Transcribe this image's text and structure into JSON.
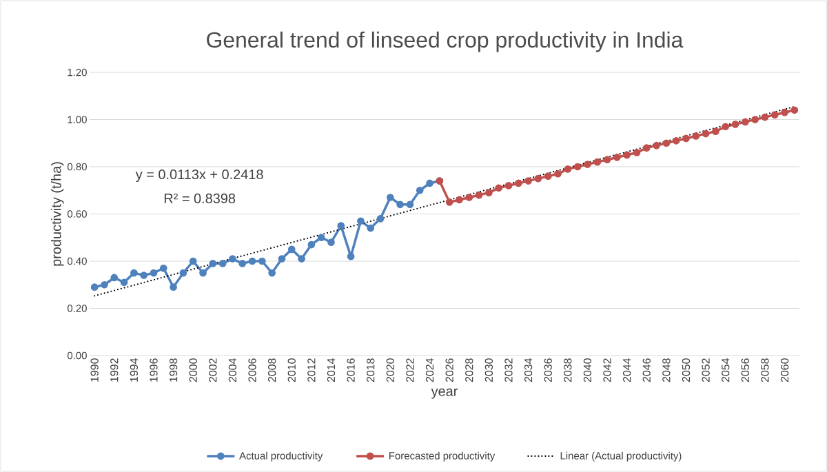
{
  "chart_data": {
    "type": "line",
    "title": "General trend of linseed crop productivity in India",
    "xlabel": "year",
    "ylabel": "productivity (t/ha)",
    "annotations": [
      "y = 0.0113x + 0.2418",
      "R² = 0.8398"
    ],
    "xlim": [
      1989.5,
      2061.5
    ],
    "xticks": [
      1990,
      1992,
      1994,
      1996,
      1998,
      2000,
      2002,
      2004,
      2006,
      2008,
      2010,
      2012,
      2014,
      2016,
      2018,
      2020,
      2022,
      2024,
      2026,
      2028,
      2030,
      2032,
      2034,
      2036,
      2038,
      2040,
      2042,
      2044,
      2046,
      2048,
      2050,
      2052,
      2054,
      2056,
      2058,
      2060
    ],
    "ylim": [
      0,
      1.2
    ],
    "yticks": [
      {
        "value": 0,
        "label": "0.00"
      },
      {
        "value": 0.2,
        "label": "0.20"
      },
      {
        "value": 0.4,
        "label": "0.40"
      },
      {
        "value": 0.6,
        "label": "0.60"
      },
      {
        "value": 0.8,
        "label": "0.80"
      },
      {
        "value": 1.0,
        "label": "1.00"
      },
      {
        "value": 1.2,
        "label": "1.20"
      }
    ],
    "grid": "y",
    "legend": "bottom",
    "marker": "circle",
    "line_style": "solid",
    "series": [
      {
        "name": "Actual productivity",
        "color": "#4f81bd",
        "x": [
          1990,
          1991,
          1992,
          1993,
          1994,
          1995,
          1996,
          1997,
          1998,
          1999,
          2000,
          2001,
          2002,
          2003,
          2004,
          2005,
          2006,
          2007,
          2008,
          2009,
          2010,
          2011,
          2012,
          2013,
          2014,
          2015,
          2016,
          2017,
          2018,
          2019,
          2020,
          2021,
          2022,
          2023,
          2024,
          2025
        ],
        "values": [
          0.29,
          0.3,
          0.33,
          0.31,
          0.35,
          0.34,
          0.35,
          0.37,
          0.29,
          0.35,
          0.4,
          0.35,
          0.39,
          0.39,
          0.41,
          0.39,
          0.4,
          0.4,
          0.35,
          0.41,
          0.45,
          0.41,
          0.47,
          0.5,
          0.48,
          0.55,
          0.42,
          0.57,
          0.54,
          0.58,
          0.67,
          0.64,
          0.64,
          0.7,
          0.73,
          0.74
        ]
      },
      {
        "name": "Forecasted productivity",
        "color": "#c0504d",
        "x": [
          2025,
          2026,
          2027,
          2028,
          2029,
          2030,
          2031,
          2032,
          2033,
          2034,
          2035,
          2036,
          2037,
          2038,
          2039,
          2040,
          2041,
          2042,
          2043,
          2044,
          2045,
          2046,
          2047,
          2048,
          2049,
          2050,
          2051,
          2052,
          2053,
          2054,
          2055,
          2056,
          2057,
          2058,
          2059,
          2060,
          2061
        ],
        "values": [
          0.74,
          0.65,
          0.66,
          0.67,
          0.68,
          0.69,
          0.71,
          0.72,
          0.73,
          0.74,
          0.75,
          0.76,
          0.77,
          0.79,
          0.8,
          0.81,
          0.82,
          0.83,
          0.84,
          0.85,
          0.86,
          0.88,
          0.89,
          0.9,
          0.91,
          0.92,
          0.93,
          0.94,
          0.95,
          0.97,
          0.98,
          0.99,
          1.0,
          1.01,
          1.02,
          1.03,
          1.04
        ]
      },
      {
        "name": "Linear (Actual productivity)",
        "color": "#000000",
        "type": "line",
        "marker": "none",
        "line_style": "dotted",
        "x": [
          1990,
          2061
        ],
        "values": [
          0.253,
          1.055
        ]
      }
    ]
  }
}
